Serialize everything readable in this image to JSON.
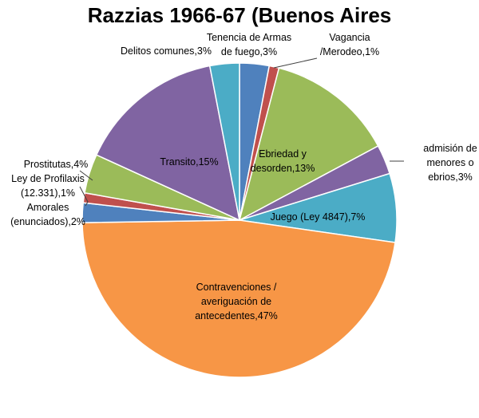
{
  "chart_data": {
    "type": "pie",
    "title": "Razzias 1966-67 (Buenos Aires",
    "slices": [
      {
        "label": [
          "Tenencia de Armas",
          "de fuego,3%"
        ],
        "value": 3,
        "color": "#4F81BD"
      },
      {
        "label": [
          "Vagancia",
          "/Merodeo,1%"
        ],
        "value": 1,
        "color": "#C0504D"
      },
      {
        "label": [
          "Ebriedad y",
          "desorden,13%"
        ],
        "value": 13,
        "color": "#9BBB59"
      },
      {
        "label": [
          "admisión de",
          "menores o",
          "ebrios,3%"
        ],
        "value": 3,
        "color": "#8064A2"
      },
      {
        "label": [
          "Juego (Ley 4847),7%"
        ],
        "value": 7,
        "color": "#4BACC6"
      },
      {
        "label": [
          "Contravenciones /",
          "averiguación de",
          "antecedentes,47%"
        ],
        "value": 47,
        "color": "#F79646"
      },
      {
        "label": [
          "Amorales",
          "(enunciados),2%"
        ],
        "value": 2,
        "color": "#4F81BD"
      },
      {
        "label": [
          "Ley de Profilaxis",
          "(12.331),1%"
        ],
        "value": 1,
        "color": "#C0504D"
      },
      {
        "label": [
          "Prostitutas,4%"
        ],
        "value": 4,
        "color": "#9BBB59"
      },
      {
        "label": [
          "Transito,15%"
        ],
        "value": 15,
        "color": "#8064A2"
      },
      {
        "label": [
          "Delitos comunes,3%"
        ],
        "value": 3,
        "color": "#4BACC6"
      }
    ]
  }
}
